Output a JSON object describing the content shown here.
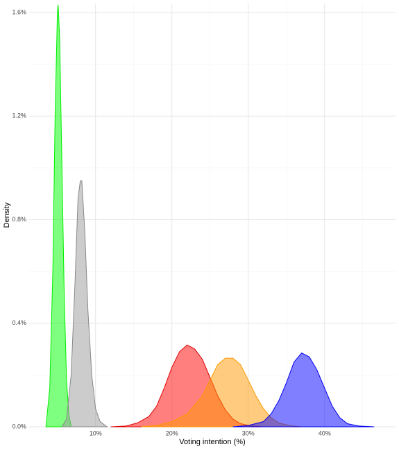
{
  "chart_data": {
    "type": "density",
    "xlabel": "Voting intention (%)",
    "ylabel": "Density",
    "xlim": [
      1.3,
      49.3
    ],
    "ylim": [
      0,
      1.635
    ],
    "xticks": [
      {
        "value": 10,
        "label": "10%"
      },
      {
        "value": 20,
        "label": "20%"
      },
      {
        "value": 30,
        "label": "30%"
      },
      {
        "value": 40,
        "label": "40%"
      }
    ],
    "yticks": [
      {
        "value": 0,
        "label": "0.0%"
      },
      {
        "value": 0.4,
        "label": "0.4%"
      },
      {
        "value": 0.8,
        "label": "0.8%"
      },
      {
        "value": 1.2,
        "label": "1.2%"
      },
      {
        "value": 1.6,
        "label": "1.6%"
      }
    ],
    "xminor": [
      5,
      15,
      25,
      35,
      45
    ],
    "yminor": [
      0.2,
      0.6,
      1.0,
      1.4
    ],
    "grid": true,
    "series": [
      {
        "color": "#00ee00",
        "fill": "#00ff00",
        "x": [
          3.5,
          4.0,
          4.4,
          4.7,
          5.0,
          5.1,
          5.3,
          5.6,
          5.9,
          6.2,
          6.5,
          6.8
        ],
        "values": [
          0,
          0.15,
          0.6,
          1.2,
          1.6,
          1.63,
          1.5,
          1.0,
          0.5,
          0.18,
          0.05,
          0
        ]
      },
      {
        "color": "#888888",
        "fill": "#999999",
        "x": [
          5.6,
          6.2,
          6.8,
          7.3,
          7.7,
          8.0,
          8.2,
          8.6,
          9.0,
          9.5,
          10.0,
          10.6,
          11.5
        ],
        "values": [
          0,
          0.03,
          0.2,
          0.55,
          0.88,
          0.95,
          0.95,
          0.75,
          0.45,
          0.2,
          0.07,
          0.02,
          0
        ]
      },
      {
        "color": "#dd0000",
        "fill": "#ff0000",
        "x": [
          12,
          14,
          15.5,
          17,
          18,
          19,
          20,
          21,
          22,
          23,
          24,
          25,
          26,
          27,
          28,
          29,
          30.5,
          32
        ],
        "values": [
          0,
          0.003,
          0.015,
          0.04,
          0.08,
          0.15,
          0.23,
          0.29,
          0.316,
          0.3,
          0.26,
          0.19,
          0.12,
          0.065,
          0.03,
          0.012,
          0.003,
          0
        ]
      },
      {
        "color": "#ff9900",
        "fill": "#ff9900",
        "x": [
          16,
          18,
          20,
          22,
          24,
          25,
          26,
          27,
          28,
          29,
          30,
          31,
          32,
          33,
          34,
          35.5,
          37
        ],
        "values": [
          0,
          0.005,
          0.02,
          0.05,
          0.12,
          0.18,
          0.24,
          0.265,
          0.265,
          0.24,
          0.18,
          0.12,
          0.07,
          0.035,
          0.015,
          0.004,
          0
        ]
      },
      {
        "color": "#0000ee",
        "fill": "#0000ff",
        "x": [
          28,
          30,
          32,
          33,
          34,
          35,
          36,
          37,
          38,
          39,
          40,
          41,
          42,
          43,
          44.5,
          46.5
        ],
        "values": [
          0,
          0.005,
          0.02,
          0.05,
          0.1,
          0.17,
          0.25,
          0.285,
          0.27,
          0.22,
          0.15,
          0.08,
          0.035,
          0.012,
          0.003,
          0
        ]
      }
    ]
  }
}
